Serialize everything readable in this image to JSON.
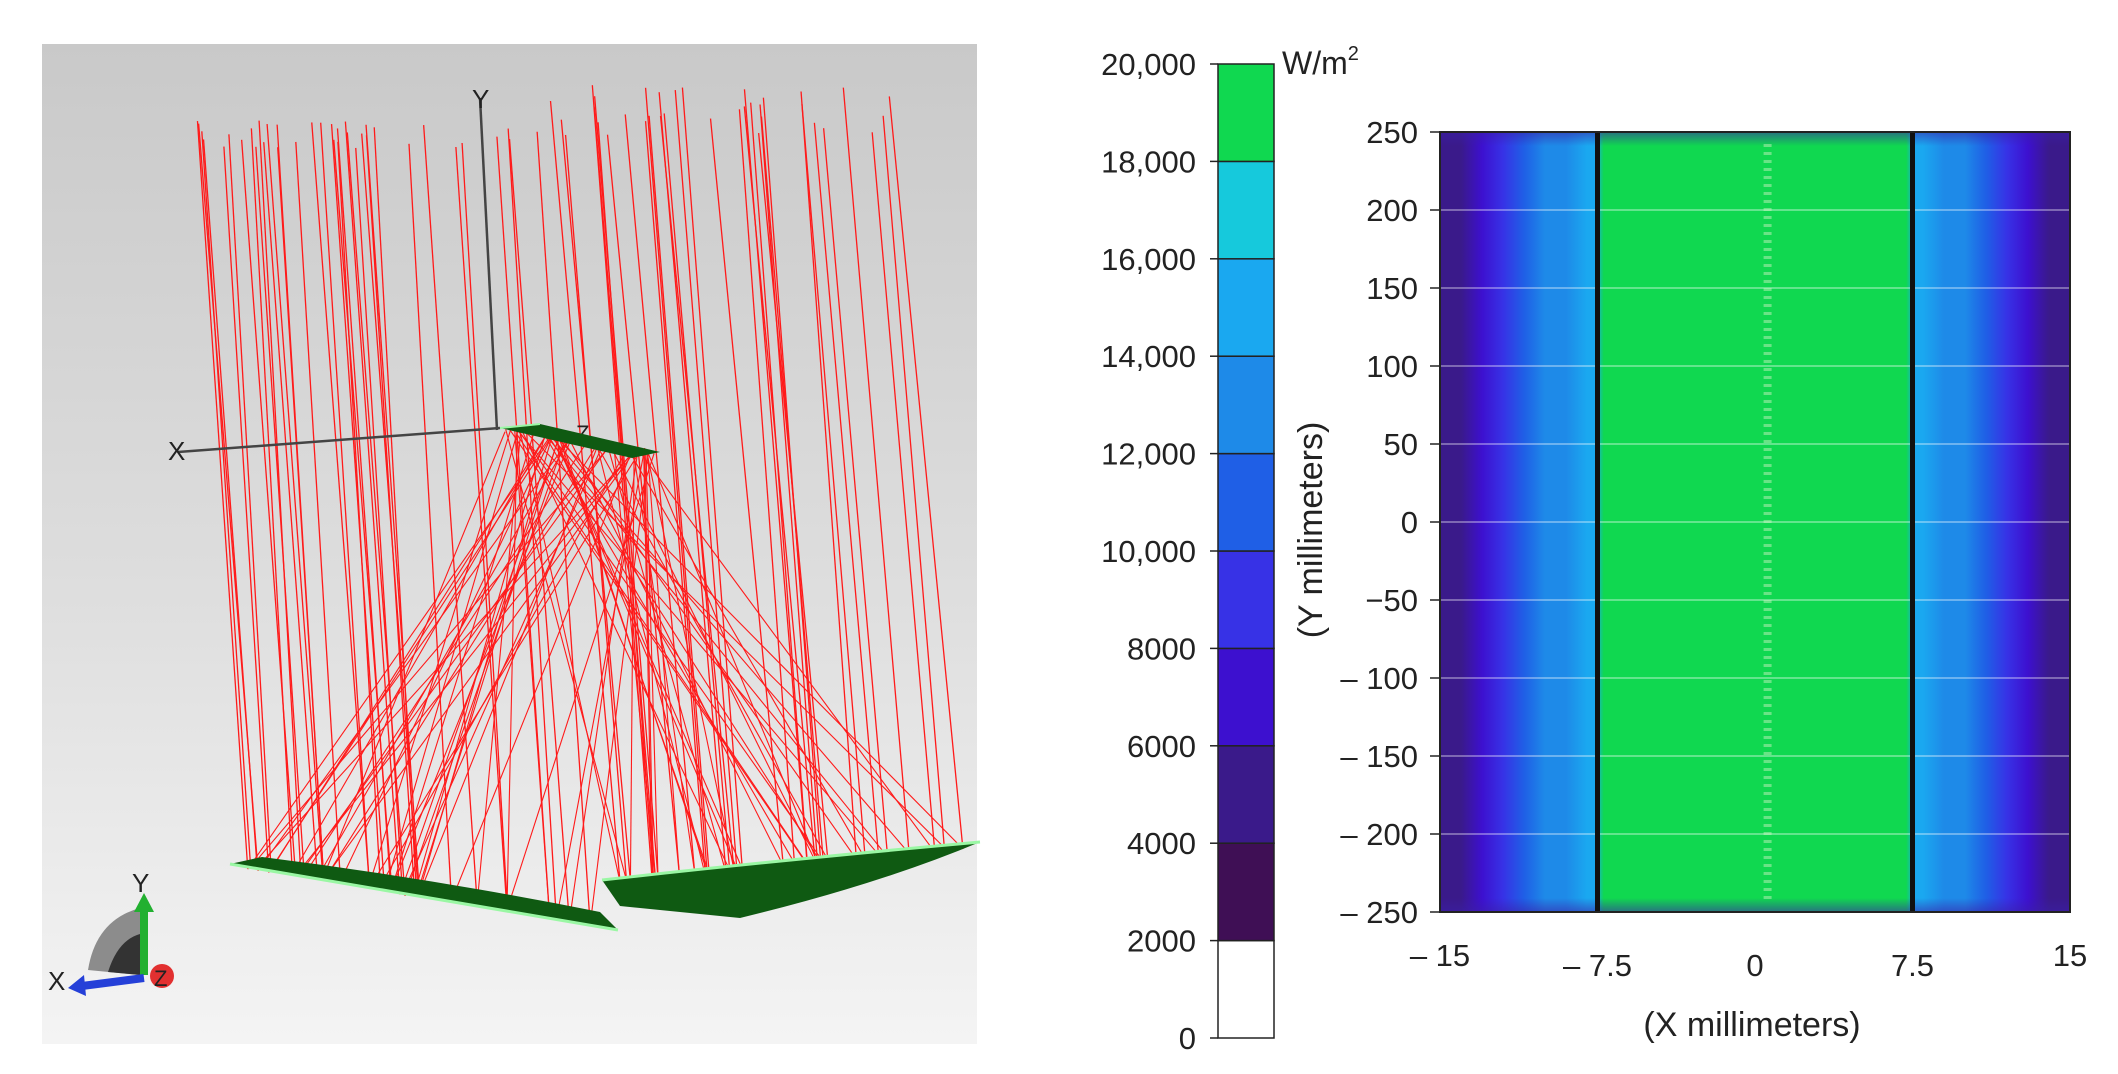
{
  "raytrace": {
    "axis_labels": {
      "x": "X",
      "y": "Y",
      "z": "Z"
    },
    "triad_labels": {
      "x": "X",
      "y": "Y",
      "z": "Z"
    },
    "colors": {
      "rays": "#ff1a1a",
      "mirror": "#0f5a12",
      "mirror_edge": "#9af7a4",
      "axis": "#333333"
    }
  },
  "chart_data": {
    "type": "heatmap",
    "colorbar": {
      "unit_prefix": "W/m",
      "unit_sup": "2",
      "ticks": [
        "0",
        "2000",
        "4000",
        "6000",
        "8000",
        "10,000",
        "12,000",
        "14,000",
        "16,000",
        "18,000",
        "20,000"
      ],
      "tick_values": [
        0,
        2000,
        4000,
        6000,
        8000,
        10000,
        12000,
        14000,
        16000,
        18000,
        20000
      ],
      "bin_colors": [
        "#ffffff",
        "#3f0f55",
        "#3a1a8a",
        "#3d10cf",
        "#3732e6",
        "#1f5fe6",
        "#1e8ae8",
        "#1aa8f0",
        "#16c9dc",
        "#10d850"
      ]
    },
    "xlabel": "(X millimeters)",
    "ylabel": "(Y millimeters)",
    "xlim": [
      -15,
      15
    ],
    "ylim": [
      -250,
      250
    ],
    "x_ticks": [
      {
        "value": -15,
        "label": "– 15"
      },
      {
        "value": -7.5,
        "label": "– 7.5"
      },
      {
        "value": 0,
        "label": "0"
      },
      {
        "value": 7.5,
        "label": "7.5"
      },
      {
        "value": 15,
        "label": "15"
      }
    ],
    "y_ticks": [
      {
        "value": 250,
        "label": "250"
      },
      {
        "value": 200,
        "label": "200"
      },
      {
        "value": 150,
        "label": "150"
      },
      {
        "value": 100,
        "label": "100"
      },
      {
        "value": 50,
        "label": "50"
      },
      {
        "value": 0,
        "label": "0"
      },
      {
        "value": -50,
        "label": "−50"
      },
      {
        "value": -100,
        "label": "– 100"
      },
      {
        "value": -150,
        "label": "– 150"
      },
      {
        "value": -200,
        "label": "– 200"
      },
      {
        "value": -250,
        "label": "– 250"
      }
    ],
    "profile": {
      "x": [
        -15,
        -14,
        -13,
        -12,
        -11,
        -10,
        -9,
        -8,
        -7.6,
        -7.2,
        -6,
        -4,
        -2,
        0,
        2,
        4,
        6,
        7.2,
        7.6,
        8,
        9,
        10,
        11,
        12,
        13,
        14,
        15
      ],
      "flux": [
        4500,
        5200,
        6500,
        8300,
        11000,
        13000,
        13800,
        14000,
        14800,
        18500,
        19000,
        19200,
        19200,
        19200,
        19200,
        19200,
        19000,
        18500,
        14800,
        14000,
        13800,
        13000,
        11000,
        8300,
        6500,
        5200,
        4500
      ]
    },
    "vertical_lines_x": [
      -7.5,
      7.5
    ]
  }
}
